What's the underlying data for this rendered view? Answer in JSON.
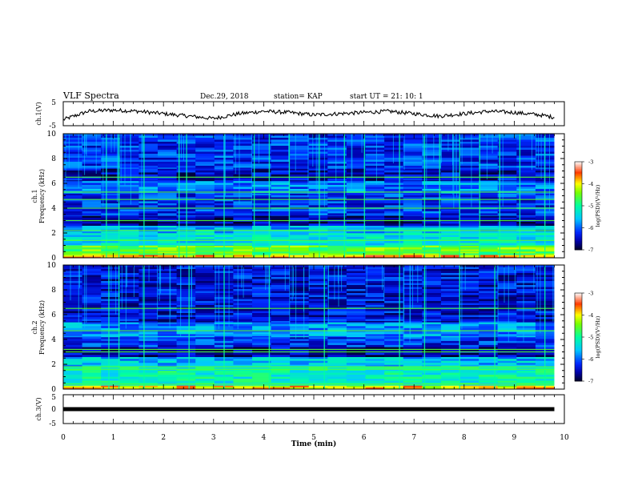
{
  "header": {
    "title": "VLF Spectra",
    "date": "Dec.29, 2018",
    "station": "station= KAP",
    "start": "start  UT =   21: 10: 1"
  },
  "chart_data": [
    {
      "type": "line",
      "panel": "ch.1 waveform",
      "ylabel": "ch.1(V)",
      "ylim": [
        -5,
        5
      ],
      "yticks": [
        "5",
        "-5"
      ],
      "x": [
        0.0,
        0.5,
        1.0,
        1.5,
        2.0,
        2.5,
        3.0,
        3.5,
        4.0,
        4.5,
        5.0,
        5.5,
        6.0,
        6.5,
        7.0,
        7.5,
        8.0,
        8.5,
        9.0,
        9.5,
        9.8
      ],
      "values": [
        -2.5,
        1.0,
        1.5,
        1.0,
        0.0,
        -1.0,
        -2.0,
        0.0,
        1.0,
        0.5,
        -0.5,
        0.0,
        0.5,
        1.0,
        0.0,
        -1.0,
        0.0,
        1.0,
        0.5,
        -0.5,
        -1.5
      ],
      "color": "#000000"
    },
    {
      "type": "heatmap",
      "panel": "ch.1 spectrogram",
      "ylabel_line1": "ch.1",
      "ylabel_line2": "Frequency (kHz)",
      "ylim": [
        0,
        10
      ],
      "yticks": [
        "0",
        "2",
        "4",
        "6",
        "8",
        "10"
      ],
      "colorbar": {
        "label": "log(PSD)(V²/Hz)",
        "ticks": [
          "-3",
          "-4",
          "-5",
          "-6",
          "-7"
        ],
        "range": [
          -7,
          -3
        ],
        "colors": [
          "#000000",
          "#0000ff",
          "#00ffff",
          "#00ff00",
          "#ffff00",
          "#ff0000",
          "#ffffff"
        ]
      },
      "bands_khz": [
        {
          "from": 0.0,
          "to": 0.25,
          "level": -3.8
        },
        {
          "from": 0.25,
          "to": 1.0,
          "level": -4.6
        },
        {
          "from": 1.0,
          "to": 2.0,
          "level": -5.3
        },
        {
          "from": 2.0,
          "to": 2.6,
          "level": -5.6
        },
        {
          "from": 2.6,
          "to": 3.4,
          "level": -6.6
        },
        {
          "from": 3.4,
          "to": 5.2,
          "level": -6.2
        },
        {
          "from": 5.2,
          "to": 6.2,
          "level": -5.9
        },
        {
          "from": 6.2,
          "to": 7.2,
          "level": -6.5
        },
        {
          "from": 7.2,
          "to": 10.0,
          "level": -6.2
        }
      ],
      "tone_lines_khz": [
        0.5,
        1.4,
        2.2,
        3.0,
        4.0,
        4.7,
        5.3,
        6.5
      ],
      "impulses_min": [
        0.85,
        1.1,
        1.6,
        2.3,
        2.45,
        3.2,
        3.8,
        4.1,
        4.5,
        5.1,
        5.6,
        6.0,
        6.7,
        7.2,
        7.5,
        7.9,
        8.3,
        8.7,
        9.1,
        9.6
      ]
    },
    {
      "type": "heatmap",
      "panel": "ch.2 spectrogram",
      "ylabel_line1": "ch.2",
      "ylabel_line2": "Frequency (kHz)",
      "ylim": [
        0,
        10
      ],
      "yticks": [
        "0",
        "2",
        "4",
        "6",
        "8",
        "10"
      ],
      "colorbar": {
        "label": "log(PSD)(V²/Hz)",
        "ticks": [
          "-3",
          "-4",
          "-5",
          "-6",
          "-7"
        ],
        "range": [
          -7,
          -3
        ]
      },
      "bands_khz": [
        {
          "from": 0.0,
          "to": 0.3,
          "level": -4.0
        },
        {
          "from": 0.3,
          "to": 1.8,
          "level": -5.2
        },
        {
          "from": 1.8,
          "to": 2.6,
          "level": -5.6
        },
        {
          "from": 2.6,
          "to": 3.4,
          "level": -6.6
        },
        {
          "from": 3.4,
          "to": 4.2,
          "level": -6.2
        },
        {
          "from": 4.2,
          "to": 5.4,
          "level": -5.8
        },
        {
          "from": 5.4,
          "to": 10.0,
          "level": -6.4
        }
      ],
      "tone_lines_khz": [
        0.4,
        1.6,
        1.8,
        3.0,
        3.2,
        4.7,
        6.5
      ],
      "impulses_min": [
        0.9,
        1.1,
        1.6,
        2.5,
        3.2,
        4.1,
        5.2,
        6.7,
        7.2,
        7.9,
        8.6,
        9.6
      ]
    },
    {
      "type": "line",
      "panel": "ch.3 waveform",
      "ylabel": "ch.3(V)",
      "ylim": [
        -5,
        5
      ],
      "yticks": [
        "5",
        "0",
        "-5"
      ],
      "x": [
        0.0,
        9.8
      ],
      "values": [
        0.0,
        0.0
      ],
      "color": "#000000",
      "xlabel": "Time (min)",
      "xlim": [
        0,
        10
      ],
      "xticks": [
        "0",
        "1",
        "2",
        "3",
        "4",
        "5",
        "6",
        "7",
        "8",
        "9",
        "10"
      ]
    }
  ]
}
